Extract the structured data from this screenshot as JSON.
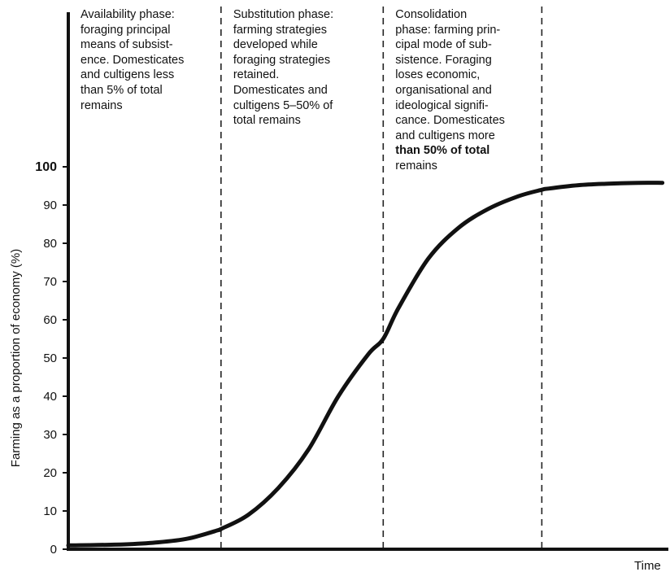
{
  "chart_data": {
    "type": "line",
    "title": "",
    "xlabel": "Time",
    "ylabel": "Farming as a proportion of economy (%)",
    "ylim": [
      0,
      100
    ],
    "yticks": [
      0,
      10,
      20,
      30,
      40,
      50,
      60,
      70,
      80,
      90,
      100
    ],
    "ytick_labels": [
      "0",
      "10",
      "20",
      "30",
      "40",
      "50",
      "60",
      "70",
      "80",
      "90",
      "100"
    ],
    "bold_ytick": "100",
    "grid": false,
    "series": [
      {
        "x": [
          0,
          0.05,
          0.1,
          0.15,
          0.2,
          0.25,
          0.2545,
          0.3,
          0.35,
          0.4,
          0.45,
          0.5,
          0.5248,
          0.55,
          0.6,
          0.65,
          0.7,
          0.75,
          0.7891,
          0.8,
          0.85,
          0.9,
          0.95,
          0.99
        ],
        "y": [
          1,
          1.1,
          1.3,
          1.8,
          2.8,
          5,
          5.3,
          9,
          16,
          26,
          40,
          51,
          55,
          63,
          76,
          84,
          89,
          92.3,
          94,
          94.3,
          95.2,
          95.6,
          95.8,
          95.8
        ],
        "color": "#111111"
      }
    ],
    "phase_boundaries": [
      0.2545,
      0.5248,
      0.7891
    ],
    "phases": [
      {
        "lines": [
          {
            "text": "Availability phase:"
          },
          {
            "text": "foraging principal"
          },
          {
            "text": "means of subsist-"
          },
          {
            "text": "ence. Domesticates"
          },
          {
            "text": "and cultigens less"
          },
          {
            "text": " than 5% of total"
          },
          {
            "text": "remains"
          }
        ]
      },
      {
        "lines": [
          {
            "text": "Substitution phase:"
          },
          {
            "text": "farming strategies"
          },
          {
            "text": "developed while"
          },
          {
            "text": "foraging strategies"
          },
          {
            "text": "retained."
          },
          {
            "text": "Domesticates and"
          },
          {
            "text": "cultigens 5–50% of"
          },
          {
            "text": "total remains"
          }
        ]
      },
      {
        "lines": [
          {
            "text": "Consolidation"
          },
          {
            "text": "phase: farming prin-"
          },
          {
            "text": "cipal mode of sub-"
          },
          {
            "text": "sistence. Foraging"
          },
          {
            "text": "loses economic,"
          },
          {
            "text": "organisational and"
          },
          {
            "text": "ideological signifi-"
          },
          {
            "text": "cance. Domesticates"
          },
          {
            "text": "and cultigens more"
          },
          {
            "text": "than 50% of total",
            "bold": true
          },
          {
            "text": "remains"
          }
        ]
      }
    ]
  }
}
